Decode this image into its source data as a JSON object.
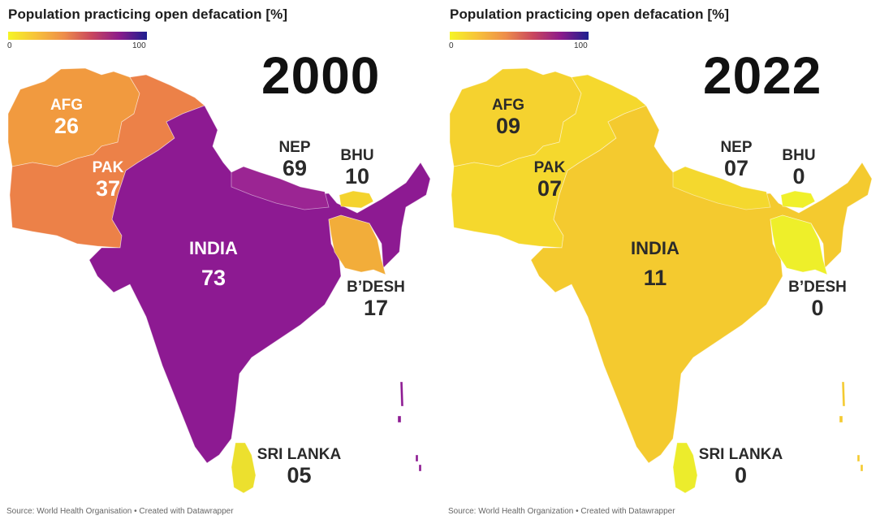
{
  "maps": [
    {
      "title": "Population practicing open defacation [%]",
      "legend": {
        "min": "0",
        "max": "100"
      },
      "year": "2000",
      "source": "Source: World Health Organisation • Created with Datawrapper",
      "countries": {
        "afg": {
          "name": "AFG",
          "value": "26",
          "color": "#f19a3f"
        },
        "pak": {
          "name": "PAK",
          "value": "37",
          "color": "#ec8148"
        },
        "ind": {
          "name": "INDIA",
          "value": "73",
          "color": "#8d1a92"
        },
        "nep": {
          "name": "NEP",
          "value": "69",
          "color": "#9b2593"
        },
        "bhu": {
          "name": "BHU",
          "value": "10",
          "color": "#f4d32d"
        },
        "bdesh": {
          "name": "B’DESH",
          "value": "17",
          "color": "#f2ad3a"
        },
        "srilanka": {
          "name": "SRI LANKA",
          "value": "05",
          "color": "#ece02e"
        }
      }
    },
    {
      "title": "Population practicing open defacation [%]",
      "legend": {
        "min": "0",
        "max": "100"
      },
      "year": "2022",
      "source": "Source: World Health Organization  • Created with Datawrapper",
      "countries": {
        "afg": {
          "name": "AFG",
          "value": "09",
          "color": "#f5d22f"
        },
        "pak": {
          "name": "PAK",
          "value": "07",
          "color": "#f5d82d"
        },
        "ind": {
          "name": "INDIA",
          "value": "11",
          "color": "#f4ca2f"
        },
        "nep": {
          "name": "NEP",
          "value": "07",
          "color": "#f4d82e"
        },
        "bhu": {
          "name": "BHU",
          "value": "0",
          "color": "#f0f02a"
        },
        "bdesh": {
          "name": "B’DESH",
          "value": "0",
          "color": "#eeef2a"
        },
        "srilanka": {
          "name": "SRI LANKA",
          "value": "0",
          "color": "#ecec2c"
        }
      }
    }
  ]
}
